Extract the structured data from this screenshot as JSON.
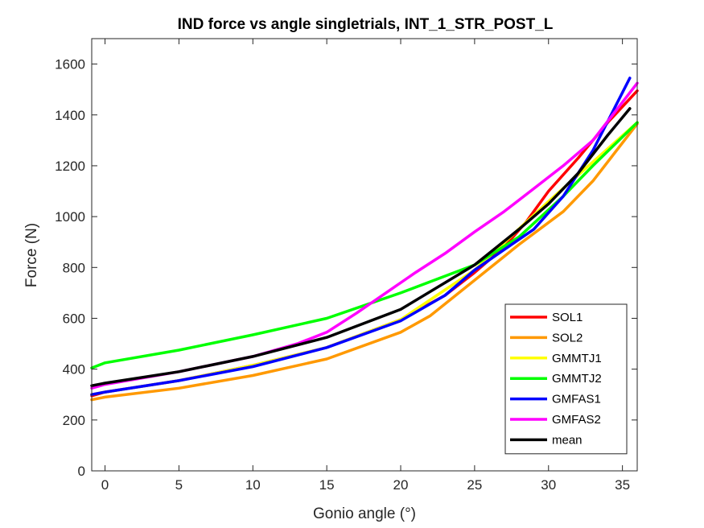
{
  "chart_data": {
    "type": "line",
    "title": "IND force vs angle singletrials, INT_1_STR_POST_L",
    "xlabel": "Gonio angle (°)",
    "ylabel": "Force (N)",
    "xlim": [
      -0.9,
      36
    ],
    "ylim": [
      0,
      1700
    ],
    "xticks": [
      0,
      5,
      10,
      15,
      20,
      25,
      30,
      35
    ],
    "yticks": [
      0,
      200,
      400,
      600,
      800,
      1000,
      1200,
      1400,
      1600
    ],
    "grid": false,
    "legend_position": "bottom-right",
    "series": [
      {
        "name": "SOL1",
        "color": "#ff0000",
        "x": [
          -0.9,
          0,
          5,
          10,
          15,
          20,
          23,
          25,
          27,
          28.5,
          30,
          32,
          34,
          36
        ],
        "y": [
          295,
          310,
          355,
          415,
          485,
          595,
          690,
          780,
          880,
          980,
          1100,
          1230,
          1370,
          1495
        ]
      },
      {
        "name": "SOL2",
        "color": "#ff9900",
        "x": [
          -0.9,
          0,
          5,
          10,
          15,
          20,
          22,
          25,
          28,
          31,
          33,
          36
        ],
        "y": [
          280,
          290,
          325,
          375,
          440,
          545,
          610,
          750,
          890,
          1020,
          1140,
          1365
        ]
      },
      {
        "name": "GMMTJ1",
        "color": "#ffff00",
        "x": [
          -0.9,
          0,
          5,
          10,
          15,
          20,
          25,
          30,
          36
        ],
        "y": [
          300,
          310,
          355,
          415,
          485,
          595,
          790,
          1060,
          1370
        ]
      },
      {
        "name": "GMMTJ2",
        "color": "#00ff00",
        "x": [
          -0.9,
          0,
          5,
          10,
          15,
          20,
          25,
          28,
          31,
          33,
          36
        ],
        "y": [
          405,
          425,
          475,
          535,
          600,
          700,
          810,
          920,
          1080,
          1200,
          1370
        ]
      },
      {
        "name": "GMFAS1",
        "color": "#0000ff",
        "x": [
          -0.9,
          0,
          5,
          10,
          15,
          20,
          23,
          25,
          27,
          29,
          31,
          33,
          35.5
        ],
        "y": [
          300,
          310,
          355,
          410,
          485,
          590,
          690,
          790,
          870,
          950,
          1080,
          1260,
          1545
        ]
      },
      {
        "name": "GMFAS2",
        "color": "#ff00ff",
        "x": [
          -0.9,
          0,
          5,
          10,
          13,
          15,
          17,
          19,
          21,
          23,
          25,
          27,
          29,
          31,
          33,
          36
        ],
        "y": [
          325,
          340,
          390,
          450,
          500,
          545,
          620,
          700,
          780,
          855,
          940,
          1020,
          1110,
          1200,
          1300,
          1525
        ]
      },
      {
        "name": "mean",
        "color": "#000000",
        "x": [
          -0.9,
          0,
          5,
          10,
          15,
          20,
          25,
          28,
          30,
          32,
          34,
          35.5
        ],
        "y": [
          335,
          345,
          390,
          450,
          525,
          635,
          810,
          950,
          1050,
          1170,
          1320,
          1425
        ]
      }
    ]
  }
}
